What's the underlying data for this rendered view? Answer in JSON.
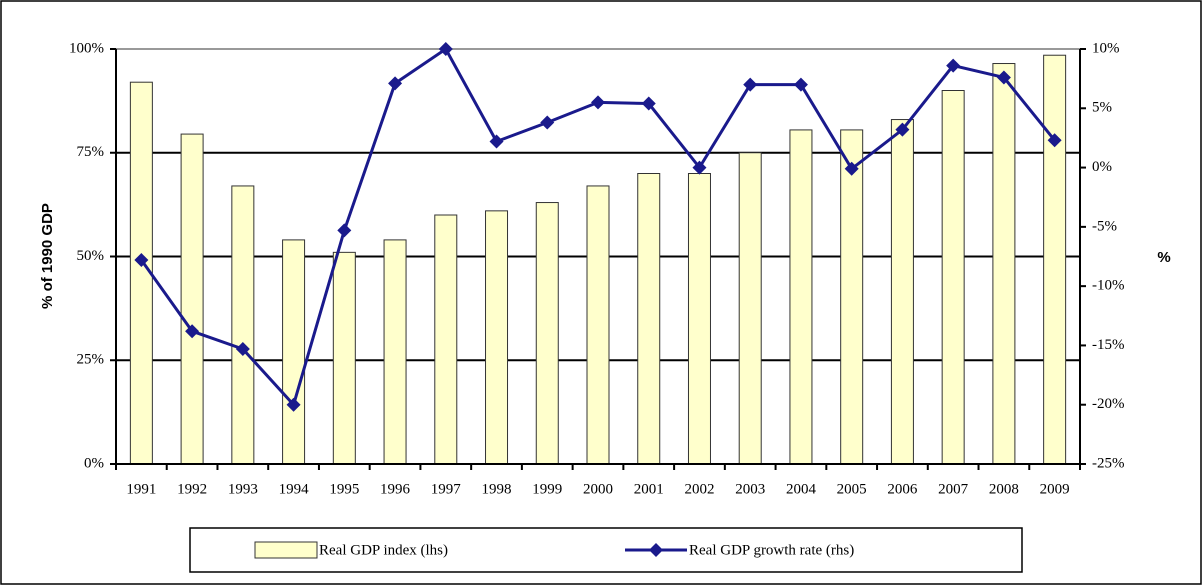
{
  "chart_data": {
    "type": "bar_line",
    "y_label": "% of 1990 GDP",
    "y2_label": "%",
    "categories": [
      "1991",
      "1992",
      "1993",
      "1994",
      "1995",
      "1996",
      "1997",
      "1998",
      "1999",
      "2000",
      "2001",
      "2002",
      "2003",
      "2004",
      "2005",
      "2006",
      "2007",
      "2008",
      "2009"
    ],
    "series": [
      {
        "name": "Real GDP index (lhs)",
        "type": "bar",
        "color": "#ffffcc",
        "values": [
          92,
          79.5,
          67,
          54,
          51,
          54,
          60,
          61,
          63,
          67,
          70,
          70,
          75,
          80.5,
          80.5,
          83,
          90,
          96.5,
          98.5
        ]
      },
      {
        "name": "Real GDP growth rate (rhs)",
        "type": "line",
        "axis": "y2",
        "color": "#1a1a8c",
        "values": [
          -7.8,
          -13.8,
          -15.3,
          -20,
          -5.3,
          7.1,
          10,
          2.2,
          3.8,
          5.5,
          5.4,
          0,
          7,
          7,
          -0.1,
          3.2,
          8.6,
          7.6,
          2.3
        ]
      }
    ],
    "ylim": [
      0,
      100
    ],
    "yticks": [
      {
        "value": 0,
        "label": "0%"
      },
      {
        "value": 25,
        "label": "25%"
      },
      {
        "value": 50,
        "label": "50%"
      },
      {
        "value": 75,
        "label": "75%"
      },
      {
        "value": 100,
        "label": "100%"
      }
    ],
    "y2lim": [
      -25,
      10
    ],
    "y2ticks": [
      {
        "value": -25,
        "label": "-25%"
      },
      {
        "value": -20,
        "label": "-20%"
      },
      {
        "value": -15,
        "label": "-15%"
      },
      {
        "value": -10,
        "label": "-10%"
      },
      {
        "value": -5,
        "label": "-5%"
      },
      {
        "value": 0,
        "label": "0%"
      },
      {
        "value": 5,
        "label": "5%"
      },
      {
        "value": 10,
        "label": "10%"
      }
    ],
    "grid": true,
    "legend": "bottom"
  }
}
